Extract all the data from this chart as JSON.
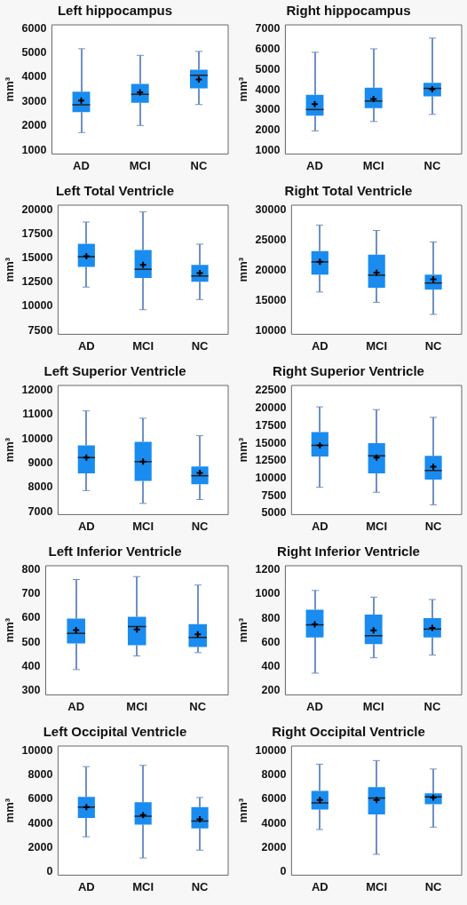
{
  "chart_data": [
    {
      "type": "box",
      "title": "Left hippocampus",
      "ylabel": "mm³",
      "categories": [
        "AD",
        "MCI",
        "NC"
      ],
      "color": "#1a8cf0",
      "marker": "cross",
      "ylim": [
        850,
        6150
      ],
      "yticks": [
        1000,
        2000,
        3000,
        4000,
        5000,
        6000
      ],
      "boxes": [
        {
          "low": 1730,
          "q1": 2570,
          "median": 2870,
          "q3": 3410,
          "high": 5170,
          "mean": 3040
        },
        {
          "low": 2020,
          "q1": 2950,
          "median": 3300,
          "q3": 3730,
          "high": 4900,
          "mean": 3380
        },
        {
          "low": 2880,
          "q1": 3540,
          "median": 4080,
          "q3": 4310,
          "high": 5060,
          "mean": 3910
        }
      ]
    },
    {
      "type": "box",
      "title": "Right hippocampus",
      "ylabel": "mm³",
      "categories": [
        "AD",
        "MCI",
        "NC"
      ],
      "color": "#1a8cf0",
      "marker": "cross",
      "ylim": [
        840,
        7200
      ],
      "yticks": [
        1000,
        2000,
        3000,
        4000,
        5000,
        6000,
        7000
      ],
      "boxes": [
        {
          "low": 1980,
          "q1": 2730,
          "median": 3030,
          "q3": 3760,
          "high": 5850,
          "mean": 3300
        },
        {
          "low": 2440,
          "q1": 3100,
          "median": 3450,
          "q3": 4100,
          "high": 6020,
          "mean": 3550
        },
        {
          "low": 2790,
          "q1": 3680,
          "median": 4070,
          "q3": 4350,
          "high": 6550,
          "mean": 4030
        }
      ]
    },
    {
      "type": "box",
      "title": "Left Total Ventricle",
      "ylabel": "mm³",
      "categories": [
        "AD",
        "MCI",
        "NC"
      ],
      "color": "#1a8cf0",
      "marker": "cross",
      "ylim": [
        7100,
        20500
      ],
      "yticks": [
        7500,
        10000,
        12500,
        15000,
        17500,
        20000
      ],
      "boxes": [
        {
          "low": 12000,
          "q1": 14100,
          "median": 15150,
          "q3": 16500,
          "high": 18750,
          "mean": 15200
        },
        {
          "low": 9650,
          "q1": 12950,
          "median": 13850,
          "q3": 15850,
          "high": 19800,
          "mean": 14300
        },
        {
          "low": 10700,
          "q1": 12550,
          "median": 13150,
          "q3": 14300,
          "high": 16450,
          "mean": 13450
        }
      ]
    },
    {
      "type": "box",
      "title": "Right Total Ventricle",
      "ylabel": "mm³",
      "categories": [
        "AD",
        "MCI",
        "NC"
      ],
      "color": "#1a8cf0",
      "marker": "cross",
      "ylim": [
        9400,
        30800
      ],
      "yticks": [
        10000,
        15000,
        20000,
        25000,
        30000
      ],
      "boxes": [
        {
          "low": 16400,
          "q1": 19300,
          "median": 21400,
          "q3": 23200,
          "high": 27500,
          "mean": 21400
        },
        {
          "low": 14700,
          "q1": 17100,
          "median": 19200,
          "q3": 22600,
          "high": 26600,
          "mean": 19600
        },
        {
          "low": 12700,
          "q1": 16800,
          "median": 17900,
          "q3": 19300,
          "high": 24700,
          "mean": 18500
        }
      ]
    },
    {
      "type": "box",
      "title": "Left Superior Ventricle",
      "ylabel": "mm³",
      "categories": [
        "AD",
        "MCI",
        "NC"
      ],
      "color": "#1a8cf0",
      "marker": "cross",
      "ylim": [
        6880,
        12200
      ],
      "yticks": [
        7000,
        8000,
        9000,
        10000,
        11000,
        12000
      ],
      "boxes": [
        {
          "low": 7870,
          "q1": 8580,
          "median": 9230,
          "q3": 9730,
          "high": 11150,
          "mean": 9230
        },
        {
          "low": 7340,
          "q1": 8270,
          "median": 9060,
          "q3": 9880,
          "high": 10850,
          "mean": 9060
        },
        {
          "low": 7500,
          "q1": 8130,
          "median": 8480,
          "q3": 8860,
          "high": 10130,
          "mean": 8600
        }
      ]
    },
    {
      "type": "box",
      "title": "Right Superior Ventricle",
      "ylabel": "mm³",
      "categories": [
        "AD",
        "MCI",
        "NC"
      ],
      "color": "#1a8cf0",
      "marker": "cross",
      "ylim": [
        4800,
        23260
      ],
      "yticks": [
        5000,
        7500,
        10000,
        12500,
        15000,
        17500,
        20000,
        22500
      ],
      "boxes": [
        {
          "low": 8700,
          "q1": 13100,
          "median": 14700,
          "q3": 16600,
          "high": 20200,
          "mean": 14700
        },
        {
          "low": 8000,
          "q1": 10700,
          "median": 13200,
          "q3": 15000,
          "high": 19800,
          "mean": 12950
        },
        {
          "low": 6200,
          "q1": 9800,
          "median": 11100,
          "q3": 13200,
          "high": 18700,
          "mean": 11650
        }
      ]
    },
    {
      "type": "box",
      "title": "Left Inferior Ventricle",
      "ylabel": "mm³",
      "categories": [
        "AD",
        "MCI",
        "NC"
      ],
      "color": "#1a8cf0",
      "marker": "cross",
      "ylim": [
        282,
        817
      ],
      "yticks": [
        300,
        400,
        500,
        600,
        700,
        800
      ],
      "boxes": [
        {
          "low": 387,
          "q1": 495,
          "median": 537,
          "q3": 598,
          "high": 760,
          "mean": 550
        },
        {
          "low": 443,
          "q1": 488,
          "median": 565,
          "q3": 605,
          "high": 772,
          "mean": 553
        },
        {
          "low": 457,
          "q1": 480,
          "median": 520,
          "q3": 575,
          "high": 737,
          "mean": 533
        }
      ]
    },
    {
      "type": "box",
      "title": "Right Inferior Ventricle",
      "ylabel": "mm³",
      "categories": [
        "AD",
        "MCI",
        "NC"
      ],
      "color": "#1a8cf0",
      "marker": "cross",
      "ylim": [
        165,
        1235
      ],
      "yticks": [
        200,
        400,
        600,
        800,
        1000,
        1200
      ],
      "boxes": [
        {
          "low": 345,
          "q1": 640,
          "median": 745,
          "q3": 870,
          "high": 1030,
          "mean": 750
        },
        {
          "low": 472,
          "q1": 585,
          "median": 655,
          "q3": 830,
          "high": 975,
          "mean": 700
        },
        {
          "low": 495,
          "q1": 640,
          "median": 710,
          "q3": 800,
          "high": 955,
          "mean": 720
        }
      ]
    },
    {
      "type": "box",
      "title": "Left Occipital Ventricle",
      "ylabel": "mm³",
      "categories": [
        "AD",
        "MCI",
        "NC"
      ],
      "color": "#1a8cf0",
      "marker": "cross",
      "ylim": [
        -270,
        10400
      ],
      "yticks": [
        0,
        2000,
        4000,
        6000,
        8000,
        10000
      ],
      "boxes": [
        {
          "low": 2900,
          "q1": 4450,
          "median": 5350,
          "q3": 6200,
          "high": 8700,
          "mean": 5350
        },
        {
          "low": 1150,
          "q1": 3900,
          "median": 4600,
          "q3": 5750,
          "high": 8800,
          "mean": 4700
        },
        {
          "low": 1800,
          "q1": 3600,
          "median": 4200,
          "q3": 5350,
          "high": 6150,
          "mean": 4350
        }
      ]
    },
    {
      "type": "box",
      "title": "Right Occipital Ventricle",
      "ylabel": "mm³",
      "categories": [
        "AD",
        "MCI",
        "NC"
      ],
      "color": "#1a8cf0",
      "marker": "cross",
      "ylim": [
        -270,
        10400
      ],
      "yticks": [
        0,
        2000,
        4000,
        6000,
        8000,
        10000
      ],
      "boxes": [
        {
          "low": 3500,
          "q1": 5150,
          "median": 5700,
          "q3": 6700,
          "high": 8900,
          "mean": 5950
        },
        {
          "low": 1450,
          "q1": 4750,
          "median": 6100,
          "q3": 7000,
          "high": 9200,
          "mean": 5950
        },
        {
          "low": 3700,
          "q1": 5600,
          "median": 6200,
          "q3": 6500,
          "high": 8500,
          "mean": 6150
        }
      ]
    }
  ]
}
